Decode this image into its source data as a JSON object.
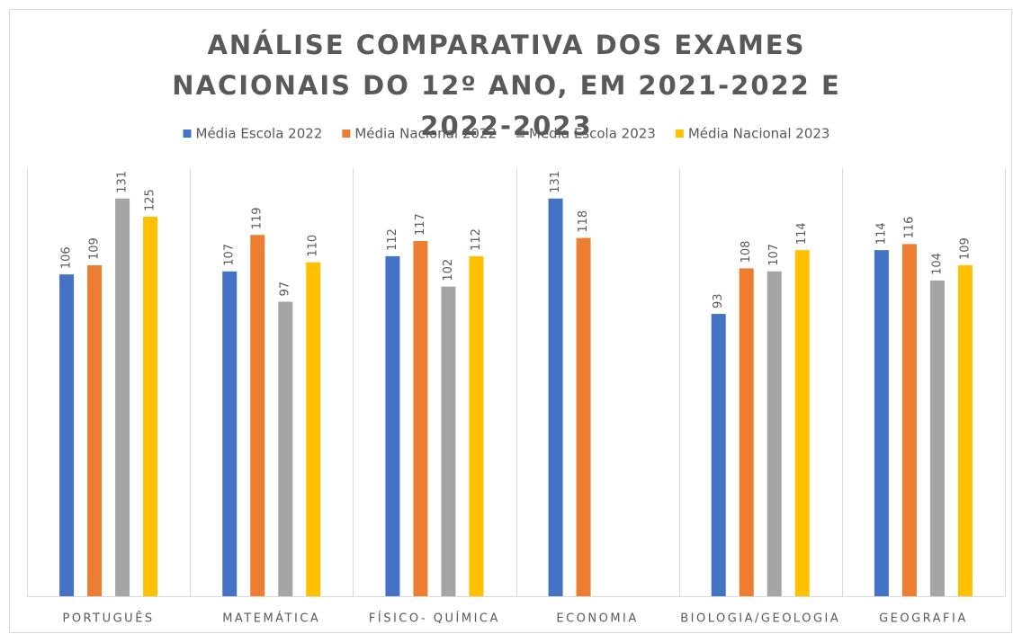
{
  "chart_data": {
    "type": "bar",
    "title": "ANÁLISE COMPARATIVA DOS EXAMES NACIONAIS DO 12º ANO, EM 2021-2022 E 2022-2023",
    "categories": [
      "PORTUGUÊS",
      "MATEMÁTICA",
      "FÍSICO- QUÍMICA",
      "ECONOMIA",
      "BIOLOGIA/GEOLOGIA",
      "GEOGRAFIA"
    ],
    "series": [
      {
        "name": "Média Escola 2022",
        "color": "#4472c4",
        "values": [
          106,
          107,
          112,
          131,
          93,
          114
        ]
      },
      {
        "name": "Média Nacional 2022",
        "color": "#ed7d31",
        "values": [
          109,
          119,
          117,
          118,
          108,
          116
        ]
      },
      {
        "name": "Média Escola 2023",
        "color": "#a5a5a5",
        "values": [
          131,
          97,
          102,
          null,
          107,
          104
        ]
      },
      {
        "name": "Média Nacional 2023",
        "color": "#ffc000",
        "values": [
          125,
          110,
          112,
          null,
          114,
          109
        ]
      }
    ],
    "ylim": [
      0,
      141
    ],
    "legend": "top"
  }
}
